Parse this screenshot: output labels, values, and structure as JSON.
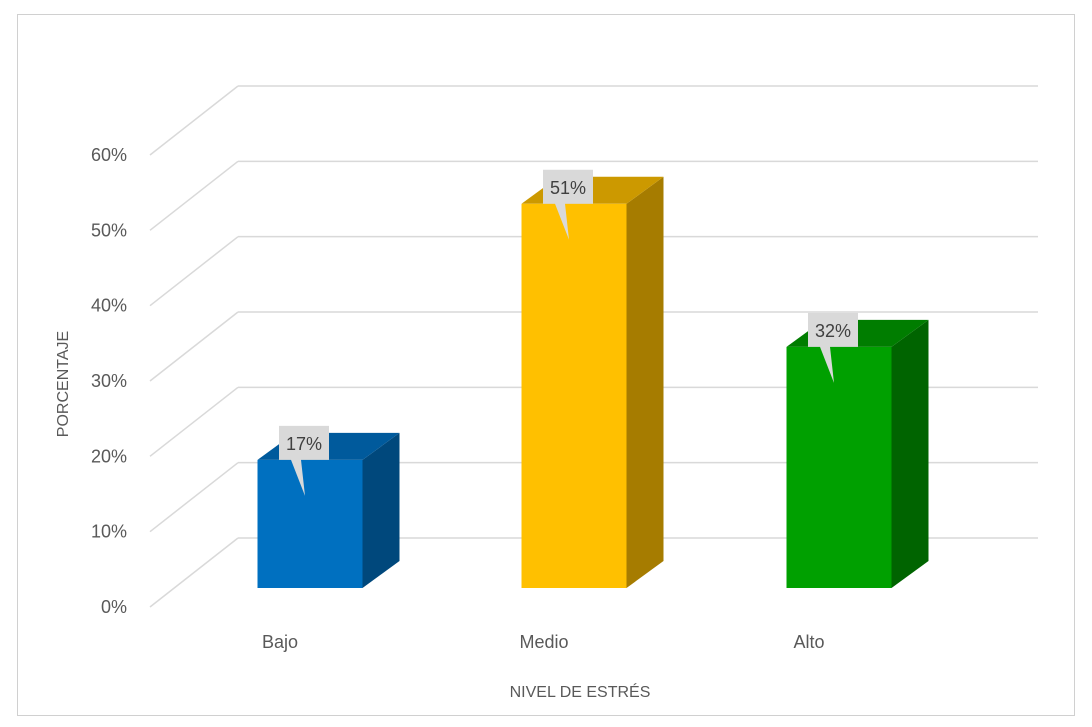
{
  "chart_data": {
    "type": "bar",
    "categories": [
      "Bajo",
      "Medio",
      "Alto"
    ],
    "values": [
      17,
      51,
      32
    ],
    "data_labels": [
      "17%",
      "51%",
      "32%"
    ],
    "title": "",
    "xlabel": "NIVEL DE ESTRÉS",
    "ylabel": "PORCENTAJE",
    "ylim": [
      0,
      60
    ],
    "yticks": [
      0,
      10,
      20,
      30,
      40,
      50,
      60
    ],
    "ytick_labels": [
      "0%",
      "10%",
      "20%",
      "30%",
      "40%",
      "50%",
      "60%"
    ],
    "grid": true,
    "legend": "none",
    "style": "3d-column",
    "colors": {
      "front": [
        "#0070C0",
        "#FFC000",
        "#00A000"
      ],
      "side": [
        "#00487C",
        "#A67C00",
        "#006400"
      ],
      "top": [
        "#005A9C",
        "#CC9900",
        "#007D00"
      ],
      "gridline": "#D9D9D9",
      "callout": "#D9D9D9"
    }
  }
}
